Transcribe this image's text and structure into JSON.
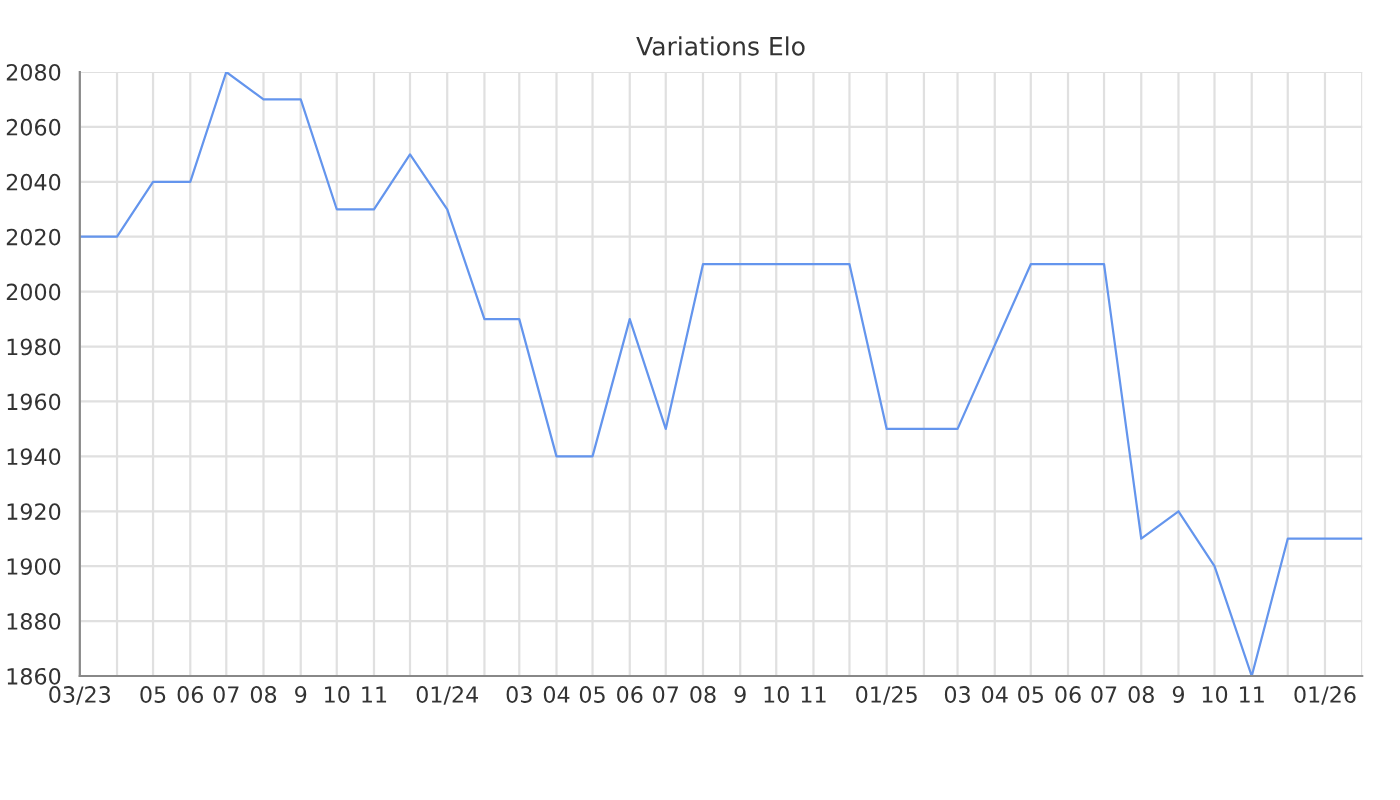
{
  "chart_data": {
    "type": "line",
    "title": "Variations Elo",
    "x": [
      "2023-03",
      "2023-04",
      "2023-05",
      "2023-06",
      "2023-07",
      "2023-08",
      "2023-09",
      "2023-10",
      "2023-11",
      "2023-12",
      "2024-01",
      "2024-02",
      "2024-03",
      "2024-04",
      "2024-05",
      "2024-06",
      "2024-07",
      "2024-08",
      "2024-09",
      "2024-10",
      "2024-11",
      "2024-12",
      "2025-01",
      "2025-02",
      "2025-03",
      "2025-05",
      "2025-06",
      "2025-07",
      "2025-08",
      "2025-09",
      "2025-10",
      "2025-11",
      "2025-12",
      "2026-01",
      "2026-02"
    ],
    "series": [
      {
        "color": "#6495ed",
        "values": [
          2020,
          2020,
          2040,
          2040,
          2080,
          2070,
          2070,
          2030,
          2030,
          2050,
          2030,
          1990,
          1990,
          1940,
          1940,
          1990,
          1950,
          2010,
          2010,
          2010,
          2010,
          2010,
          1950,
          1950,
          1950,
          2010,
          2010,
          2010,
          1910,
          1920,
          1900,
          1860,
          1910,
          1910,
          1910
        ]
      }
    ],
    "xlim": [
      "2023-03",
      "2026-02"
    ],
    "xticks": [
      {
        "value": "2023-03",
        "label": "03/23"
      },
      {
        "value": "2023-04",
        "label": null
      },
      {
        "value": "2023-05",
        "label": "05"
      },
      {
        "value": "2023-06",
        "label": "06"
      },
      {
        "value": "2023-07",
        "label": "07"
      },
      {
        "value": "2023-08",
        "label": "08"
      },
      {
        "value": "2023-09",
        "label": "9"
      },
      {
        "value": "2023-10",
        "label": "10"
      },
      {
        "value": "2023-11",
        "label": "11"
      },
      {
        "value": "2023-12",
        "label": null
      },
      {
        "value": "2024-01",
        "label": "01/24"
      },
      {
        "value": "2024-02",
        "label": null
      },
      {
        "value": "2024-03",
        "label": "03"
      },
      {
        "value": "2024-04",
        "label": "04"
      },
      {
        "value": "2024-05",
        "label": "05"
      },
      {
        "value": "2024-06",
        "label": "06"
      },
      {
        "value": "2024-07",
        "label": "07"
      },
      {
        "value": "2024-08",
        "label": "08"
      },
      {
        "value": "2024-09",
        "label": "9"
      },
      {
        "value": "2024-10",
        "label": "10"
      },
      {
        "value": "2024-11",
        "label": "11"
      },
      {
        "value": "2024-12",
        "label": null
      },
      {
        "value": "2025-01",
        "label": "01/25"
      },
      {
        "value": "2025-02",
        "label": null
      },
      {
        "value": "2025-03",
        "label": "03"
      },
      {
        "value": "2025-04",
        "label": "04"
      },
      {
        "value": "2025-05",
        "label": "05"
      },
      {
        "value": "2025-06",
        "label": "06"
      },
      {
        "value": "2025-07",
        "label": "07"
      },
      {
        "value": "2025-08",
        "label": "08"
      },
      {
        "value": "2025-09",
        "label": "9"
      },
      {
        "value": "2025-10",
        "label": "10"
      },
      {
        "value": "2025-11",
        "label": "11"
      },
      {
        "value": "2025-12",
        "label": null
      },
      {
        "value": "2026-01",
        "label": "01/26"
      },
      {
        "value": "2026-02",
        "label": null
      }
    ],
    "ylim": [
      1860,
      2080
    ],
    "yticks": [
      1860,
      1880,
      1900,
      1920,
      1940,
      1960,
      1980,
      2000,
      2020,
      2040,
      2060,
      2080
    ],
    "grid": true,
    "legend": false,
    "marker": "none",
    "line_style": "solid"
  }
}
